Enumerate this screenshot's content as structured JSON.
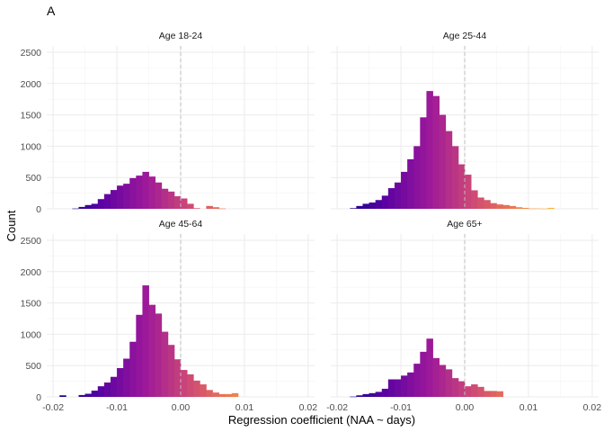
{
  "chart_data": {
    "type": "bar",
    "subtype": "faceted-histogram",
    "tag": "A",
    "xlabel": "Regression coefficient (NAA ~ days)",
    "ylabel": "Count",
    "xlim": [
      -0.021,
      0.021
    ],
    "ylim": [
      0,
      2600
    ],
    "x_ticks": [
      -0.02,
      -0.01,
      0.0,
      0.01,
      0.02
    ],
    "x_tick_labels": [
      "-0.02",
      "-0.01",
      "0.00",
      "0.01",
      "0.02"
    ],
    "y_ticks": [
      0,
      500,
      1000,
      1500,
      2000,
      2500
    ],
    "y_tick_labels": [
      "0",
      "500",
      "1000",
      "1500",
      "2000",
      "2500"
    ],
    "bin_width": 0.001,
    "reference_line_x": 0,
    "grid": true,
    "colors": {
      "gradient": [
        "#0d0887",
        "#5b02a3",
        "#9a179b",
        "#cb4678",
        "#eb7852",
        "#fbb32f"
      ],
      "grid": "#ebebeb",
      "reference_line": "#bdbdbd"
    },
    "panels": [
      {
        "title": "Age 18-24",
        "bins": [
          {
            "x": -0.0165,
            "count": 5
          },
          {
            "x": -0.0155,
            "count": 30
          },
          {
            "x": -0.0145,
            "count": 60
          },
          {
            "x": -0.0135,
            "count": 80
          },
          {
            "x": -0.0125,
            "count": 155
          },
          {
            "x": -0.0115,
            "count": 235
          },
          {
            "x": -0.0105,
            "count": 300
          },
          {
            "x": -0.0095,
            "count": 370
          },
          {
            "x": -0.0085,
            "count": 400
          },
          {
            "x": -0.0075,
            "count": 490
          },
          {
            "x": -0.0065,
            "count": 530
          },
          {
            "x": -0.0055,
            "count": 590
          },
          {
            "x": -0.0045,
            "count": 515
          },
          {
            "x": -0.0035,
            "count": 420
          },
          {
            "x": -0.0025,
            "count": 320
          },
          {
            "x": -0.0015,
            "count": 275
          },
          {
            "x": -0.0005,
            "count": 200
          },
          {
            "x": 0.0005,
            "count": 165
          },
          {
            "x": 0.0015,
            "count": 80
          },
          {
            "x": 0.0025,
            "count": 10
          },
          {
            "x": 0.0035,
            "count": 0
          },
          {
            "x": 0.0045,
            "count": 45
          },
          {
            "x": 0.0055,
            "count": 25
          },
          {
            "x": 0.0065,
            "count": 5
          }
        ]
      },
      {
        "title": "Age 25-44",
        "bins": [
          {
            "x": -0.0175,
            "count": 10
          },
          {
            "x": -0.0165,
            "count": 45
          },
          {
            "x": -0.0155,
            "count": 80
          },
          {
            "x": -0.0145,
            "count": 100
          },
          {
            "x": -0.0135,
            "count": 140
          },
          {
            "x": -0.0125,
            "count": 210
          },
          {
            "x": -0.0115,
            "count": 330
          },
          {
            "x": -0.0105,
            "count": 420
          },
          {
            "x": -0.0095,
            "count": 590
          },
          {
            "x": -0.0085,
            "count": 790
          },
          {
            "x": -0.0075,
            "count": 1000
          },
          {
            "x": -0.0065,
            "count": 1460
          },
          {
            "x": -0.0055,
            "count": 1880
          },
          {
            "x": -0.0045,
            "count": 1800
          },
          {
            "x": -0.0035,
            "count": 1500
          },
          {
            "x": -0.0025,
            "count": 1240
          },
          {
            "x": -0.0015,
            "count": 1000
          },
          {
            "x": -0.0005,
            "count": 710
          },
          {
            "x": 0.0005,
            "count": 545
          },
          {
            "x": 0.0015,
            "count": 295
          },
          {
            "x": 0.0025,
            "count": 180
          },
          {
            "x": 0.0035,
            "count": 140
          },
          {
            "x": 0.0045,
            "count": 90
          },
          {
            "x": 0.0055,
            "count": 70
          },
          {
            "x": 0.0065,
            "count": 60
          },
          {
            "x": 0.0075,
            "count": 45
          },
          {
            "x": 0.0085,
            "count": 25
          },
          {
            "x": 0.0095,
            "count": 15
          },
          {
            "x": 0.0105,
            "count": 5
          },
          {
            "x": 0.0115,
            "count": 5
          },
          {
            "x": 0.0125,
            "count": 3
          },
          {
            "x": 0.0135,
            "count": 15
          }
        ]
      },
      {
        "title": "Age 45-64",
        "bins": [
          {
            "x": -0.0185,
            "count": 25
          },
          {
            "x": -0.0175,
            "count": 0
          },
          {
            "x": -0.0165,
            "count": 0
          },
          {
            "x": -0.0155,
            "count": 30
          },
          {
            "x": -0.0145,
            "count": 50
          },
          {
            "x": -0.0135,
            "count": 100
          },
          {
            "x": -0.0125,
            "count": 170
          },
          {
            "x": -0.0115,
            "count": 230
          },
          {
            "x": -0.0105,
            "count": 320
          },
          {
            "x": -0.0095,
            "count": 460
          },
          {
            "x": -0.0085,
            "count": 610
          },
          {
            "x": -0.0075,
            "count": 880
          },
          {
            "x": -0.0065,
            "count": 1310
          },
          {
            "x": -0.0055,
            "count": 1780
          },
          {
            "x": -0.0045,
            "count": 1470
          },
          {
            "x": -0.0035,
            "count": 1330
          },
          {
            "x": -0.0025,
            "count": 1040
          },
          {
            "x": -0.0015,
            "count": 830
          },
          {
            "x": -0.0005,
            "count": 600
          },
          {
            "x": 0.0005,
            "count": 430
          },
          {
            "x": 0.0015,
            "count": 360
          },
          {
            "x": 0.0025,
            "count": 260
          },
          {
            "x": 0.0035,
            "count": 200
          },
          {
            "x": 0.0045,
            "count": 110
          },
          {
            "x": 0.0055,
            "count": 70
          },
          {
            "x": 0.0065,
            "count": 45
          },
          {
            "x": 0.0075,
            "count": 45
          },
          {
            "x": 0.0085,
            "count": 60
          }
        ]
      },
      {
        "title": "Age 65+",
        "bins": [
          {
            "x": -0.0175,
            "count": 5
          },
          {
            "x": -0.0165,
            "count": 25
          },
          {
            "x": -0.0155,
            "count": 45
          },
          {
            "x": -0.0145,
            "count": 60
          },
          {
            "x": -0.0135,
            "count": 80
          },
          {
            "x": -0.0125,
            "count": 130
          },
          {
            "x": -0.0115,
            "count": 280
          },
          {
            "x": -0.0105,
            "count": 280
          },
          {
            "x": -0.0095,
            "count": 340
          },
          {
            "x": -0.0085,
            "count": 390
          },
          {
            "x": -0.0075,
            "count": 530
          },
          {
            "x": -0.0065,
            "count": 720
          },
          {
            "x": -0.0055,
            "count": 930
          },
          {
            "x": -0.0045,
            "count": 620
          },
          {
            "x": -0.0035,
            "count": 510
          },
          {
            "x": -0.0025,
            "count": 440
          },
          {
            "x": -0.0015,
            "count": 300
          },
          {
            "x": -0.0005,
            "count": 250
          },
          {
            "x": 0.0005,
            "count": 170
          },
          {
            "x": 0.0015,
            "count": 200
          },
          {
            "x": 0.0025,
            "count": 160
          },
          {
            "x": 0.0035,
            "count": 95
          },
          {
            "x": 0.0045,
            "count": 95
          },
          {
            "x": 0.0055,
            "count": 90
          }
        ]
      }
    ]
  }
}
